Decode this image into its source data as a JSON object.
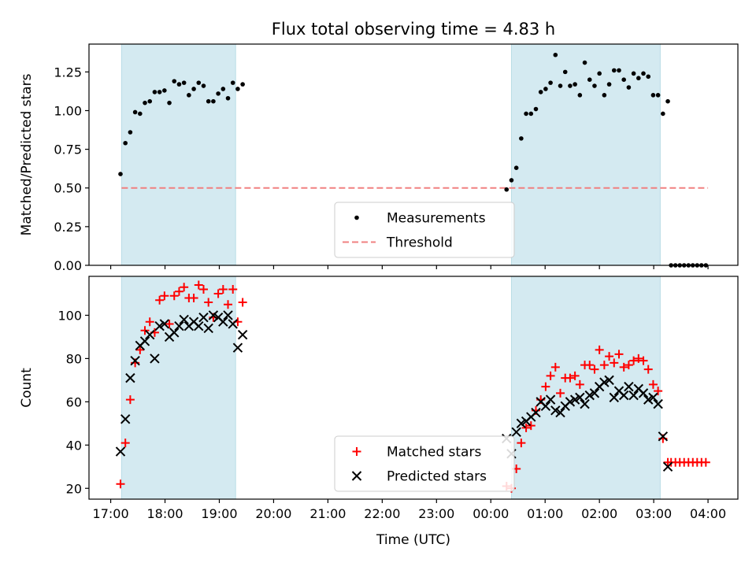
{
  "chart_data": {
    "title": "Flux total observing time = 4.83 h",
    "x_axis": {
      "label": "Time (UTC)",
      "range_hours": [
        16.6,
        28.55
      ],
      "ticks": [
        {
          "value": 17,
          "label": "17:00"
        },
        {
          "value": 18,
          "label": "18:00"
        },
        {
          "value": 19,
          "label": "19:00"
        },
        {
          "value": 20,
          "label": "20:00"
        },
        {
          "value": 21,
          "label": "21:00"
        },
        {
          "value": 22,
          "label": "22:00"
        },
        {
          "value": 23,
          "label": "23:00"
        },
        {
          "value": 24,
          "label": "00:00"
        },
        {
          "value": 25,
          "label": "01:00"
        },
        {
          "value": 26,
          "label": "02:00"
        },
        {
          "value": 27,
          "label": "03:00"
        },
        {
          "value": 28,
          "label": "04:00"
        }
      ]
    },
    "shaded_intervals_hours": [
      [
        17.2,
        19.3
      ],
      [
        24.38,
        27.12
      ]
    ],
    "shade_color": "#d4eaf1",
    "panels": [
      {
        "name": "ratio",
        "type": "scatter",
        "ylabel": "Matched/Predicted stars",
        "ylim": [
          0,
          1.43
        ],
        "yticks": [
          "0.00",
          "0.25",
          "0.50",
          "0.75",
          "1.00",
          "1.25"
        ],
        "threshold": {
          "name": "Threshold",
          "value": 0.5,
          "x_range": [
            17.2,
            28.0
          ],
          "color": "#f08080"
        },
        "legend": {
          "position": "bottom-center"
        },
        "series": [
          {
            "name": "Measurements",
            "marker": "dot",
            "color": "#000000",
            "points": [
              [
                17.18,
                0.59
              ],
              [
                17.27,
                0.79
              ],
              [
                17.36,
                0.86
              ],
              [
                17.45,
                0.99
              ],
              [
                17.54,
                0.98
              ],
              [
                17.63,
                1.05
              ],
              [
                17.72,
                1.06
              ],
              [
                17.81,
                1.12
              ],
              [
                17.9,
                1.12
              ],
              [
                17.99,
                1.13
              ],
              [
                18.08,
                1.05
              ],
              [
                18.17,
                1.19
              ],
              [
                18.26,
                1.17
              ],
              [
                18.35,
                1.18
              ],
              [
                18.44,
                1.1
              ],
              [
                18.53,
                1.14
              ],
              [
                18.62,
                1.18
              ],
              [
                18.71,
                1.16
              ],
              [
                18.8,
                1.06
              ],
              [
                18.89,
                1.06
              ],
              [
                18.98,
                1.11
              ],
              [
                19.07,
                1.14
              ],
              [
                19.16,
                1.08
              ],
              [
                19.25,
                1.18
              ],
              [
                19.34,
                1.14
              ],
              [
                19.43,
                1.17
              ],
              [
                24.29,
                0.49
              ],
              [
                24.38,
                0.55
              ],
              [
                24.47,
                0.63
              ],
              [
                24.56,
                0.82
              ],
              [
                24.65,
                0.98
              ],
              [
                24.74,
                0.98
              ],
              [
                24.83,
                1.01
              ],
              [
                24.92,
                1.12
              ],
              [
                25.01,
                1.14
              ],
              [
                25.1,
                1.18
              ],
              [
                25.19,
                1.36
              ],
              [
                25.28,
                1.16
              ],
              [
                25.37,
                1.25
              ],
              [
                25.46,
                1.16
              ],
              [
                25.55,
                1.17
              ],
              [
                25.64,
                1.1
              ],
              [
                25.73,
                1.31
              ],
              [
                25.82,
                1.2
              ],
              [
                25.91,
                1.16
              ],
              [
                26.0,
                1.24
              ],
              [
                26.09,
                1.1
              ],
              [
                26.18,
                1.17
              ],
              [
                26.27,
                1.26
              ],
              [
                26.36,
                1.26
              ],
              [
                26.45,
                1.2
              ],
              [
                26.54,
                1.15
              ],
              [
                26.63,
                1.24
              ],
              [
                26.72,
                1.21
              ],
              [
                26.81,
                1.24
              ],
              [
                26.9,
                1.22
              ],
              [
                26.99,
                1.1
              ],
              [
                27.08,
                1.1
              ],
              [
                27.17,
                0.98
              ],
              [
                27.26,
                1.06
              ],
              [
                27.32,
                0.0
              ],
              [
                27.4,
                0.0
              ],
              [
                27.48,
                0.0
              ],
              [
                27.56,
                0.0
              ],
              [
                27.64,
                0.0
              ],
              [
                27.72,
                0.0
              ],
              [
                27.8,
                0.0
              ],
              [
                27.88,
                0.0
              ],
              [
                27.96,
                0.0
              ]
            ]
          }
        ]
      },
      {
        "name": "count",
        "type": "scatter",
        "ylabel": "Count",
        "ylim": [
          15,
          118
        ],
        "yticks": [
          "20",
          "40",
          "60",
          "80",
          "100"
        ],
        "legend": {
          "position": "bottom-center"
        },
        "series": [
          {
            "name": "Matched stars",
            "marker": "plus",
            "color": "#ff0000",
            "points": [
              [
                17.18,
                22
              ],
              [
                17.27,
                41
              ],
              [
                17.36,
                61
              ],
              [
                17.45,
                78
              ],
              [
                17.54,
                84
              ],
              [
                17.63,
                93
              ],
              [
                17.72,
                97
              ],
              [
                17.81,
                92
              ],
              [
                17.9,
                107
              ],
              [
                17.99,
                109
              ],
              [
                18.08,
                96
              ],
              [
                18.17,
                109
              ],
              [
                18.26,
                111
              ],
              [
                18.35,
                113
              ],
              [
                18.44,
                108
              ],
              [
                18.53,
                108
              ],
              [
                18.62,
                114
              ],
              [
                18.71,
                112
              ],
              [
                18.8,
                106
              ],
              [
                18.89,
                99
              ],
              [
                18.98,
                110
              ],
              [
                19.07,
                112
              ],
              [
                19.16,
                105
              ],
              [
                19.25,
                112
              ],
              [
                19.34,
                97
              ],
              [
                19.43,
                106
              ],
              [
                24.29,
                21
              ],
              [
                24.38,
                20
              ],
              [
                24.47,
                29
              ],
              [
                24.56,
                41
              ],
              [
                24.65,
                48
              ],
              [
                24.74,
                49
              ],
              [
                24.83,
                56
              ],
              [
                24.92,
                61
              ],
              [
                25.01,
                67
              ],
              [
                25.1,
                72
              ],
              [
                25.19,
                76
              ],
              [
                25.28,
                64
              ],
              [
                25.37,
                71
              ],
              [
                25.46,
                71
              ],
              [
                25.55,
                72
              ],
              [
                25.64,
                68
              ],
              [
                25.73,
                77
              ],
              [
                25.82,
                77
              ],
              [
                25.91,
                75
              ],
              [
                26.0,
                84
              ],
              [
                26.09,
                77
              ],
              [
                26.18,
                81
              ],
              [
                26.27,
                78
              ],
              [
                26.36,
                82
              ],
              [
                26.45,
                76
              ],
              [
                26.54,
                77
              ],
              [
                26.63,
                79
              ],
              [
                26.72,
                80
              ],
              [
                26.81,
                79
              ],
              [
                26.9,
                75
              ],
              [
                26.99,
                68
              ],
              [
                27.08,
                65
              ],
              [
                27.17,
                43
              ],
              [
                27.26,
                32
              ],
              [
                27.32,
                32
              ],
              [
                27.4,
                32
              ],
              [
                27.48,
                32
              ],
              [
                27.56,
                32
              ],
              [
                27.64,
                32
              ],
              [
                27.72,
                32
              ],
              [
                27.8,
                32
              ],
              [
                27.88,
                32
              ],
              [
                27.96,
                32
              ]
            ]
          },
          {
            "name": "Predicted stars",
            "marker": "x",
            "color": "#000000",
            "points": [
              [
                17.18,
                37
              ],
              [
                17.27,
                52
              ],
              [
                17.36,
                71
              ],
              [
                17.45,
                79
              ],
              [
                17.54,
                86
              ],
              [
                17.63,
                88
              ],
              [
                17.72,
                91
              ],
              [
                17.81,
                80
              ],
              [
                17.9,
                95
              ],
              [
                17.99,
                96
              ],
              [
                18.08,
                90
              ],
              [
                18.17,
                92
              ],
              [
                18.26,
                95
              ],
              [
                18.35,
                98
              ],
              [
                18.44,
                95
              ],
              [
                18.53,
                97
              ],
              [
                18.62,
                95
              ],
              [
                18.71,
                99
              ],
              [
                18.8,
                94
              ],
              [
                18.89,
                100
              ],
              [
                18.98,
                99
              ],
              [
                19.07,
                97
              ],
              [
                19.16,
                100
              ],
              [
                19.25,
                96
              ],
              [
                19.34,
                85
              ],
              [
                19.43,
                91
              ],
              [
                24.29,
                43
              ],
              [
                24.38,
                36
              ],
              [
                24.47,
                46
              ],
              [
                24.56,
                50
              ],
              [
                24.65,
                51
              ],
              [
                24.74,
                53
              ],
              [
                24.83,
                55
              ],
              [
                24.92,
                60
              ],
              [
                25.01,
                58
              ],
              [
                25.1,
                61
              ],
              [
                25.19,
                56
              ],
              [
                25.28,
                55
              ],
              [
                25.37,
                58
              ],
              [
                25.46,
                60
              ],
              [
                25.55,
                61
              ],
              [
                25.64,
                62
              ],
              [
                25.73,
                59
              ],
              [
                25.82,
                63
              ],
              [
                25.91,
                64
              ],
              [
                26.0,
                67
              ],
              [
                26.09,
                69
              ],
              [
                26.18,
                70
              ],
              [
                26.27,
                62
              ],
              [
                26.36,
                65
              ],
              [
                26.45,
                63
              ],
              [
                26.54,
                67
              ],
              [
                26.63,
                63
              ],
              [
                26.72,
                66
              ],
              [
                26.81,
                64
              ],
              [
                26.9,
                61
              ],
              [
                26.99,
                62
              ],
              [
                27.08,
                59
              ],
              [
                27.17,
                44
              ],
              [
                27.26,
                30
              ]
            ]
          }
        ]
      }
    ]
  }
}
